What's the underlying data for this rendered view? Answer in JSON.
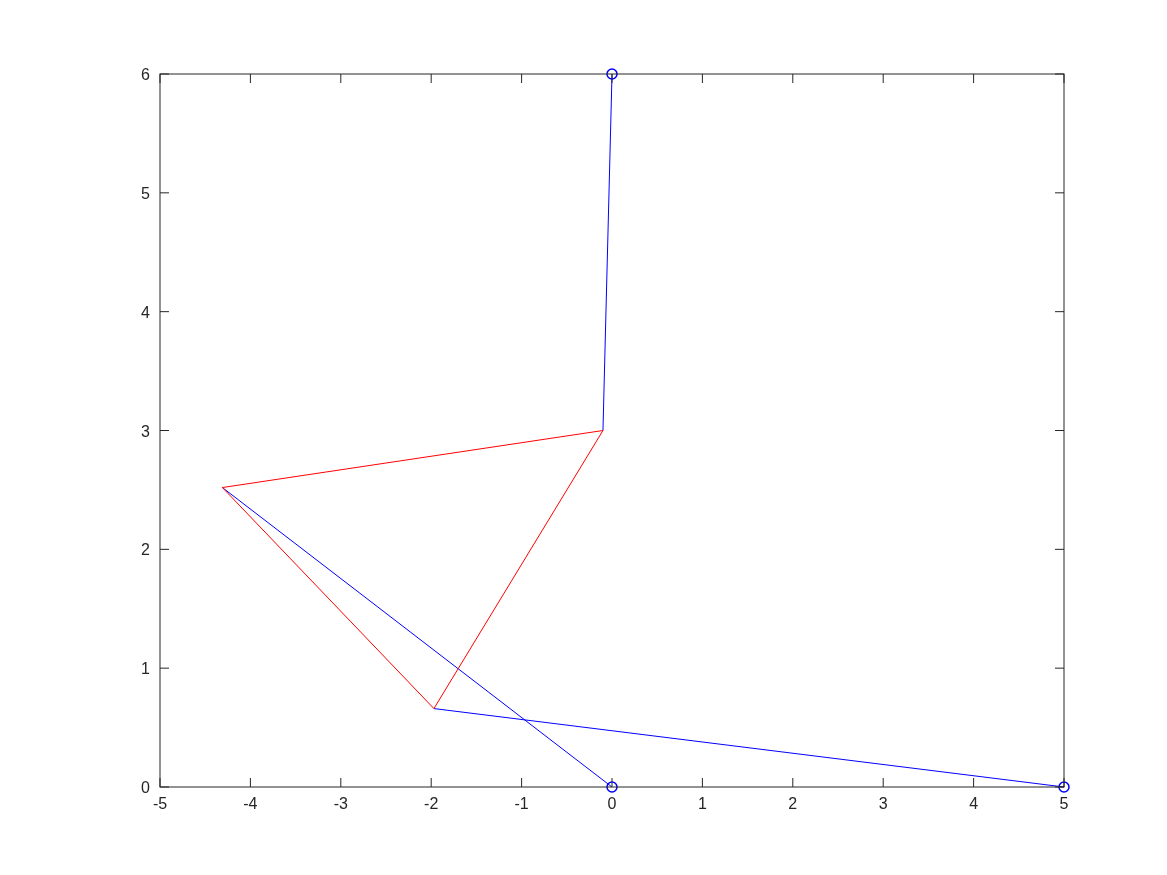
{
  "chart_data": {
    "type": "line",
    "xlim": [
      -5,
      5
    ],
    "xticks": [
      -5,
      -4,
      -3,
      -2,
      -1,
      0,
      1,
      2,
      3,
      4,
      5
    ],
    "ylim": [
      0,
      6
    ],
    "yticks": [
      0,
      1,
      2,
      3,
      4,
      5,
      6
    ],
    "grid": false,
    "series": [
      {
        "color": "#0000ff",
        "x": [
          0,
          -0.1
        ],
        "values": [
          6,
          3
        ],
        "marker": "none"
      },
      {
        "color": "#0000ff",
        "x": [
          -4.31,
          0
        ],
        "values": [
          2.52,
          0
        ],
        "marker": "none"
      },
      {
        "color": "#0000ff",
        "x": [
          -1.97,
          5
        ],
        "values": [
          0.66,
          0
        ],
        "marker": "none"
      },
      {
        "color": "#ff0000",
        "x": [
          -4.31,
          -0.1
        ],
        "values": [
          2.52,
          3
        ],
        "marker": "none"
      },
      {
        "color": "#ff0000",
        "x": [
          -4.31,
          -1.97
        ],
        "values": [
          2.52,
          0.66
        ],
        "marker": "none"
      },
      {
        "color": "#ff0000",
        "x": [
          -1.97,
          -0.1
        ],
        "values": [
          0.66,
          3
        ],
        "marker": "none"
      },
      {
        "type": "scatter",
        "color": "#0000ff",
        "x": [
          0,
          0,
          5
        ],
        "values": [
          6,
          0,
          0
        ],
        "marker": "circle"
      }
    ]
  }
}
